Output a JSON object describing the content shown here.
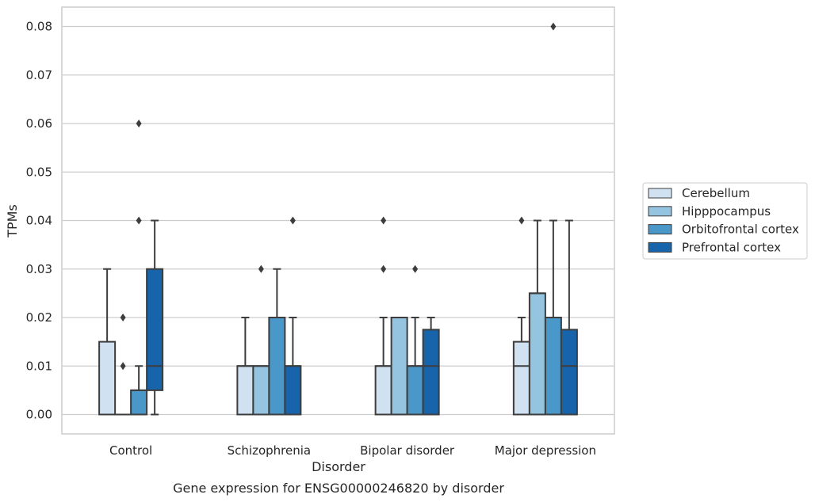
{
  "chart_data": {
    "type": "box",
    "xlabel": "Disorder",
    "ylabel": "TPMs",
    "caption": "Gene expression for ENSG00000246820 by disorder",
    "ylim": [
      -0.004,
      0.084
    ],
    "yticks": [
      0.0,
      0.01,
      0.02,
      0.03,
      0.04,
      0.05,
      0.06,
      0.07,
      0.08
    ],
    "ytick_labels": [
      "0.00",
      "0.01",
      "0.02",
      "0.03",
      "0.04",
      "0.05",
      "0.06",
      "0.07",
      "0.08"
    ],
    "grid": true,
    "legend_position": "right",
    "categories": [
      "Control",
      "Schizophrenia",
      "Bipolar disorder",
      "Major depression"
    ],
    "series": [
      {
        "name": "Cerebellum",
        "color": "#d0e1f2",
        "boxes": [
          {
            "q1": 0.0,
            "median": 0.0,
            "q3": 0.015,
            "whisker_low": 0.0,
            "whisker_high": 0.03,
            "outliers": []
          },
          {
            "q1": 0.0,
            "median": 0.01,
            "q3": 0.01,
            "whisker_low": 0.0,
            "whisker_high": 0.02,
            "outliers": []
          },
          {
            "q1": 0.0,
            "median": 0.01,
            "q3": 0.01,
            "whisker_low": 0.0,
            "whisker_high": 0.02,
            "outliers": [
              0.03,
              0.04
            ]
          },
          {
            "q1": 0.0,
            "median": 0.01,
            "q3": 0.015,
            "whisker_low": 0.0,
            "whisker_high": 0.02,
            "outliers": [
              0.04
            ]
          }
        ]
      },
      {
        "name": "Hipppocampus",
        "color": "#94c4df",
        "boxes": [
          {
            "q1": 0.0,
            "median": 0.0,
            "q3": 0.0,
            "whisker_low": 0.0,
            "whisker_high": 0.0,
            "outliers": [
              0.01,
              0.02
            ]
          },
          {
            "q1": 0.0,
            "median": 0.01,
            "q3": 0.01,
            "whisker_low": 0.0,
            "whisker_high": 0.01,
            "outliers": [
              0.03
            ]
          },
          {
            "q1": 0.0,
            "median": 0.02,
            "q3": 0.02,
            "whisker_low": 0.0,
            "whisker_high": 0.02,
            "outliers": []
          },
          {
            "q1": 0.0,
            "median": 0.025,
            "q3": 0.025,
            "whisker_low": 0.0,
            "whisker_high": 0.04,
            "outliers": []
          }
        ]
      },
      {
        "name": "Orbitofrontal cortex",
        "color": "#4a98c9",
        "boxes": [
          {
            "q1": 0.0,
            "median": 0.005,
            "q3": 0.005,
            "whisker_low": 0.0,
            "whisker_high": 0.01,
            "outliers": [
              0.04,
              0.06
            ]
          },
          {
            "q1": 0.0,
            "median": 0.02,
            "q3": 0.02,
            "whisker_low": 0.0,
            "whisker_high": 0.03,
            "outliers": []
          },
          {
            "q1": 0.0,
            "median": 0.01,
            "q3": 0.01,
            "whisker_low": 0.0,
            "whisker_high": 0.02,
            "outliers": [
              0.03
            ]
          },
          {
            "q1": 0.0,
            "median": 0.02,
            "q3": 0.02,
            "whisker_low": 0.0,
            "whisker_high": 0.04,
            "outliers": [
              0.08
            ]
          }
        ]
      },
      {
        "name": "Prefrontal cortex",
        "color": "#1764ab",
        "boxes": [
          {
            "q1": 0.005,
            "median": 0.01,
            "q3": 0.03,
            "whisker_low": 0.0,
            "whisker_high": 0.04,
            "outliers": []
          },
          {
            "q1": 0.0,
            "median": 0.01,
            "q3": 0.01,
            "whisker_low": 0.0,
            "whisker_high": 0.02,
            "outliers": [
              0.04
            ]
          },
          {
            "q1": 0.0,
            "median": 0.01,
            "q3": 0.0175,
            "whisker_low": 0.0,
            "whisker_high": 0.02,
            "outliers": []
          },
          {
            "q1": 0.0,
            "median": 0.01,
            "q3": 0.0175,
            "whisker_low": 0.0,
            "whisker_high": 0.04,
            "outliers": []
          }
        ]
      }
    ]
  }
}
